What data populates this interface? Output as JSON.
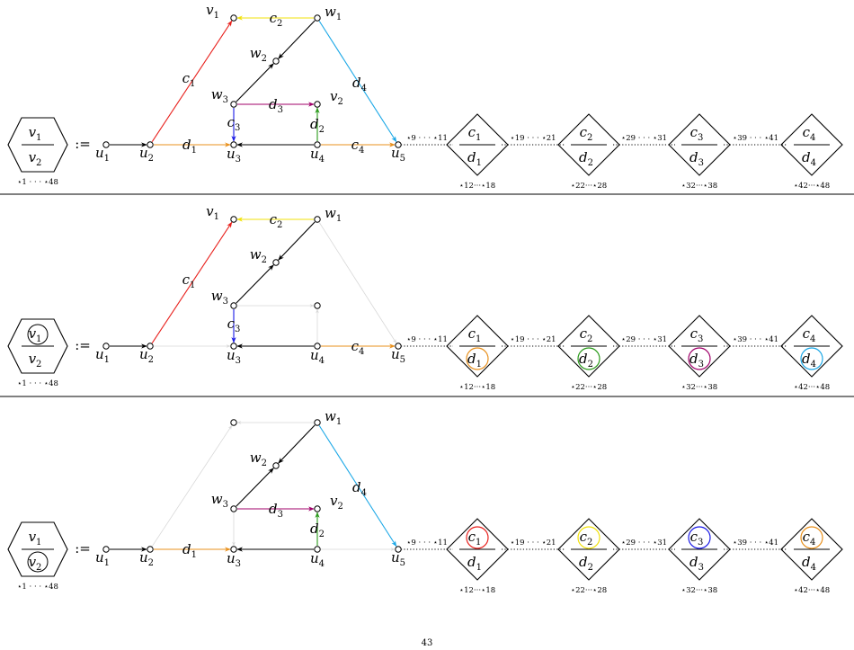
{
  "assign": ":=",
  "page_number": "43",
  "colors": {
    "red": "#e8201c",
    "yellow": "#f2e20a",
    "cyan": "#1aa7e6",
    "orange": "#e8901c",
    "purple": "#a0006a",
    "blue": "#1a1ae6",
    "green": "#2a9a1a",
    "black": "#000000",
    "faint": "#d8d8d8"
  },
  "node_labels": {
    "v1": [
      "v",
      "1"
    ],
    "v2": [
      "v",
      "2"
    ],
    "w1": [
      "w",
      "1"
    ],
    "w2": [
      "w",
      "2"
    ],
    "w3": [
      "w",
      "3"
    ],
    "u1": [
      "u",
      "1"
    ],
    "u2": [
      "u",
      "2"
    ],
    "u3": [
      "u",
      "3"
    ],
    "u4": [
      "u",
      "4"
    ],
    "u5": [
      "u",
      "5"
    ]
  },
  "edge_labels": {
    "c1": [
      "c",
      "1"
    ],
    "c2": [
      "c",
      "2"
    ],
    "c3": [
      "c",
      "3"
    ],
    "c4": [
      "c",
      "4"
    ],
    "d1": [
      "d",
      "1"
    ],
    "d2": [
      "d",
      "2"
    ],
    "d3": [
      "d",
      "3"
    ],
    "d4": [
      "d",
      "4"
    ]
  },
  "hexagon": {
    "top": [
      "v",
      "1"
    ],
    "bottom": [
      "v",
      "2"
    ],
    "stars": "⋆1 · · · ⋆48"
  },
  "chain_labels": [
    "⋆9 · · · ⋆11",
    "⋆19 · · · ⋆21",
    "⋆29 · · · ⋆31",
    "⋆39 · · · ⋆41"
  ],
  "diamonds": [
    {
      "top": [
        "c",
        "1"
      ],
      "bottom": [
        "d",
        "1"
      ],
      "stars": "⋆12···⋆18"
    },
    {
      "top": [
        "c",
        "2"
      ],
      "bottom": [
        "d",
        "2"
      ],
      "stars": "⋆22···⋆28"
    },
    {
      "top": [
        "c",
        "3"
      ],
      "bottom": [
        "d",
        "3"
      ],
      "stars": "⋆32···⋆38"
    },
    {
      "top": [
        "c",
        "4"
      ],
      "bottom": [
        "d",
        "4"
      ],
      "stars": "⋆42···⋆48"
    }
  ],
  "panels": [
    {
      "hex_circle": "none",
      "edges": {
        "c1": "red",
        "c2": "yellow",
        "d4": "cyan",
        "w1w2": "black",
        "w2w3": "black",
        "d3": "purple",
        "c3": "blue",
        "d2": "green",
        "u1u2": "black",
        "d1": "orange",
        "u4u3": "black",
        "c4": "orange"
      },
      "labels": [
        "v1",
        "v2",
        "w1",
        "w2",
        "w3",
        "u1",
        "u2",
        "u3",
        "u4",
        "u5",
        "c1",
        "c2",
        "c3",
        "c4",
        "d1",
        "d2",
        "d3",
        "d4"
      ],
      "diamond_circles": [
        null,
        null,
        null,
        null
      ]
    },
    {
      "hex_circle": "top",
      "edges": {
        "c1": "red",
        "c2": "yellow",
        "d4": "faint",
        "w1w2": "black",
        "w2w3": "black",
        "d3": "faint",
        "c3": "blue",
        "d2": "faint",
        "u1u2": "black",
        "d1": "faint",
        "u4u3": "black",
        "c4": "orange"
      },
      "labels": [
        "v1",
        "w1",
        "w2",
        "w3",
        "u1",
        "u2",
        "u3",
        "u4",
        "u5",
        "c1",
        "c2",
        "c3",
        "c4"
      ],
      "diamond_circles": [
        {
          "part": "bottom",
          "color": "orange"
        },
        {
          "part": "bottom",
          "color": "green"
        },
        {
          "part": "bottom",
          "color": "purple"
        },
        {
          "part": "bottom",
          "color": "cyan"
        }
      ]
    },
    {
      "hex_circle": "bottom",
      "edges": {
        "c1": "faint",
        "c2": "faint",
        "d4": "cyan",
        "w1w2": "black",
        "w2w3": "black",
        "d3": "purple",
        "c3": "faint",
        "d2": "green",
        "u1u2": "black",
        "d1": "orange",
        "u4u3": "black",
        "c4": "faint"
      },
      "labels": [
        "v2",
        "w1",
        "w2",
        "w3",
        "u1",
        "u2",
        "u3",
        "u4",
        "u5",
        "d1",
        "d2",
        "d3",
        "d4"
      ],
      "diamond_circles": [
        {
          "part": "top",
          "color": "red"
        },
        {
          "part": "top",
          "color": "yellow"
        },
        {
          "part": "top",
          "color": "blue"
        },
        {
          "part": "top",
          "color": "orange"
        }
      ]
    }
  ]
}
